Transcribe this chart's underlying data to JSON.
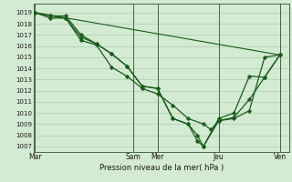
{
  "title": "Pression niveau de la mer( hPa )",
  "background_color": "#d3ead3",
  "plot_bg_color": "#d3ead3",
  "grid_color": "#b0ccb0",
  "line_color": "#1a5c1a",
  "ylim": [
    1006.5,
    1019.8
  ],
  "yticks": [
    1007,
    1008,
    1009,
    1010,
    1011,
    1012,
    1013,
    1014,
    1015,
    1016,
    1017,
    1018,
    1019
  ],
  "day_labels": [
    "Mar",
    "Sam",
    "Mer",
    "Jeu",
    "Ven"
  ],
  "day_x": [
    0,
    3.2,
    4.0,
    6.0,
    8.0
  ],
  "xlim": [
    -0.05,
    8.3
  ],
  "line1_x": [
    0,
    0.5,
    1.0,
    1.5,
    2.0,
    2.5,
    3.0,
    3.5,
    4.0,
    4.5,
    5.0,
    5.5,
    5.75,
    6.0,
    6.5,
    7.0,
    7.5,
    8.0
  ],
  "line1_y": [
    1019.0,
    1018.7,
    1018.5,
    1016.5,
    1016.1,
    1014.1,
    1013.3,
    1012.2,
    1011.7,
    1010.7,
    1009.5,
    1009.0,
    1008.5,
    1009.3,
    1009.5,
    1010.2,
    1015.0,
    1015.2
  ],
  "line2_x": [
    0,
    0.5,
    1.0,
    1.5,
    2.0,
    2.5,
    3.0,
    3.5,
    4.0,
    4.5,
    5.0,
    5.3,
    5.5,
    6.0,
    6.5,
    7.0,
    7.5,
    8.0
  ],
  "line2_y": [
    1019.0,
    1018.7,
    1018.7,
    1017.0,
    1016.2,
    1015.3,
    1014.2,
    1012.4,
    1012.2,
    1009.5,
    1009.0,
    1008.0,
    1007.0,
    1009.3,
    1009.6,
    1011.2,
    1013.2,
    1015.2
  ],
  "line3_x": [
    0,
    0.5,
    1.0,
    1.5,
    2.0,
    2.5,
    3.0,
    3.5,
    4.0,
    4.5,
    5.0,
    5.3,
    5.5,
    6.0,
    6.5,
    7.0,
    7.5,
    8.0
  ],
  "line3_y": [
    1019.0,
    1018.5,
    1018.5,
    1016.8,
    1016.2,
    1015.3,
    1014.2,
    1012.4,
    1012.2,
    1009.5,
    1009.0,
    1007.5,
    1007.0,
    1009.5,
    1010.0,
    1013.3,
    1013.2,
    1015.2
  ],
  "line4_x": [
    0,
    8.0
  ],
  "line4_y": [
    1019.0,
    1015.2
  ],
  "vline_x": [
    3.2,
    4.0,
    6.0,
    8.0
  ]
}
